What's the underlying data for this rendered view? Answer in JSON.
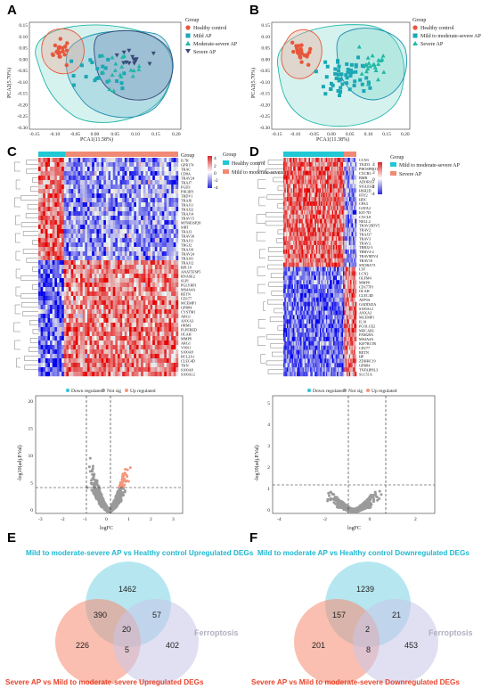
{
  "panels": {
    "A": "A",
    "B": "B",
    "C": "C",
    "D": "D",
    "E": "E",
    "F": "F"
  },
  "colors": {
    "healthy": "#e8563a",
    "mild": "#1aa7b5",
    "modsev": "#1fb8a6",
    "severe": "#3a4a7a",
    "down": "#2ec4d6",
    "notsig": "#9a9a9a",
    "up": "#f4957a",
    "venn_blue_title": "#1fb8d0",
    "venn_red_title": "#e8452c"
  },
  "pcaA": {
    "legend_title": "Group",
    "legend": [
      "Healthy control",
      "Mild AP",
      "Moderate-severe AP",
      "Severe AP"
    ],
    "xlabel": "PCA1(11.58%)",
    "ylabel": "PCA2(5.70%)",
    "xticks": [
      "-0.15",
      "-0.10",
      "-0.05",
      "0.00",
      "0.05",
      "0.10",
      "0.15",
      "0.20"
    ],
    "yticks": [
      "0.15",
      "0.10",
      "0.05",
      "0.00",
      "-0.05",
      "-0.10",
      "-0.15",
      "-0.20",
      "-0.25",
      "-0.30"
    ]
  },
  "pcaB": {
    "legend_title": "Group",
    "legend": [
      "Healthy control",
      "Mild to moderate-severe AP",
      "Severe AP"
    ],
    "xlabel": "PCA1(11.38%)",
    "ylabel": "PCA2(5.70%)",
    "xticks": [
      "-0.15",
      "-0.10",
      "-0.05",
      "0.00",
      "0.05",
      "0.10",
      "0.15",
      "0.20"
    ],
    "yticks": [
      "0.15",
      "0.10",
      "0.05",
      "0.00",
      "-0.05",
      "-0.10",
      "-0.15",
      "-0.20",
      "-0.25",
      "-0.30"
    ]
  },
  "heatC": {
    "legend_title": "Group",
    "legend": [
      "Healthy control",
      "Mild to moderate-severe AP"
    ],
    "scale": [
      "4",
      "2",
      "0",
      "-2",
      "-4"
    ],
    "genes": [
      "IL7R",
      "GPR174",
      "TRAC",
      "CD8A",
      "TRAV24",
      "TRAJ7",
      "FGD3",
      "PIK3IP1",
      "TRDV1",
      "TRAJ6",
      "TRAJ11",
      "TRAJ22",
      "TRAJ14",
      "TRAV15",
      "MT9H3SP28",
      "SIRT",
      "TRAJ3",
      "TRAV30",
      "TRAJ11",
      "TRGJ2",
      "TRAJ10",
      "TRAV24",
      "TRAJ41",
      "TRAJ12",
      "RPL10",
      "ANAT5FSP5",
      "RNASE2",
      "SLPI",
      "PGLYRP1",
      "MS4A4A",
      "RETN",
      "CD177",
      "MCEMP1",
      "GPR84",
      "CYSTM1",
      "ARG1",
      "ANXA3",
      "ORM1",
      "PLPFRED",
      "OLAH",
      "MMP8",
      "ARG1",
      "VNN1",
      "S100A8",
      "BCL2A1",
      "CLEC4D",
      "TKN",
      "S100A8",
      "S100A12"
    ]
  },
  "heatD": {
    "legend_title": "Group",
    "legend": [
      "Mild to moderate-severe AP",
      "Severe AP"
    ],
    "scale": [
      "4",
      "2",
      "0",
      "-2",
      "-4"
    ],
    "genes": [
      "CCN3",
      "TIGD3",
      "PHOSPHO1",
      "CXCR3",
      "BMR",
      "ADORA3",
      "SIGLEC8",
      "HSH2D",
      "IFIT2",
      "HDC",
      "CPA3",
      "GATA2",
      "KIT-7D",
      "CXCL8",
      "NELL2",
      "TRAV29DV5",
      "TRAV2",
      "TRAJ37",
      "TRAV3",
      "TRAV2",
      "TRBJ2-3",
      "TRBV4-2",
      "TRAV8DV4",
      "TRAV10",
      "SNORA73",
      "LTF",
      "LCN2",
      "OLFM4",
      "MMP8",
      "CD177P1",
      "OLAH",
      "CLEC4D",
      "ATP9A",
      "GADD45A",
      "S100A12",
      "ANXA3",
      "MCEMP1",
      "IL10",
      "PCOLCE2",
      "MECAB1",
      "FAM20A",
      "MS4A4A",
      "KIF7R1TR",
      "CD177",
      "RETN",
      "HP",
      "ZDHHC19",
      "GPR84",
      "TNFAIP8L3",
      "SLC51A"
    ]
  },
  "volcC": {
    "legend": [
      "Down regulated",
      "Not sig",
      "Up regulated"
    ],
    "xlabel": "logFC",
    "ylabel": "-log10(adj.P.Val)",
    "xticks": [
      "-3",
      "-2",
      "-1",
      "0",
      "1",
      "2",
      "3"
    ],
    "yticks": [
      "0",
      "5",
      "10",
      "15",
      "20"
    ]
  },
  "volcD": {
    "legend": [
      "Down regulated",
      "Not sig",
      "Up regulated"
    ],
    "xlabel": "logFC",
    "ylabel": "-log10(adj.P.Val)",
    "xticks": [
      "-4",
      "-2",
      "0",
      "2"
    ],
    "yticks": [
      "0",
      "1",
      "2",
      "3",
      "4",
      "5"
    ]
  },
  "vennE": {
    "title_top": "Mild to moderate-severe  AP vs Healthy control Upregulated DEGs",
    "title_bottom": "Severe AP vs Mild to moderate-severe Upregulated DEGs",
    "ferro": "Ferroptosis",
    "n_top": "1462",
    "n_tl": "390",
    "n_tr": "57",
    "n_center": "20",
    "n_left": "226",
    "n_lr": "5",
    "n_right": "402"
  },
  "vennF": {
    "title_top": "Mild to moderate AP vs Healthy control Downregulated DEGs",
    "title_bottom": "Severe AP vs Mild to moderate-severe Downregulated DEGs",
    "ferro": "Ferroptosis",
    "n_top": "1239",
    "n_tl": "157",
    "n_tr": "21",
    "n_center": "2",
    "n_left": "201",
    "n_lr": "8",
    "n_right": "453"
  }
}
